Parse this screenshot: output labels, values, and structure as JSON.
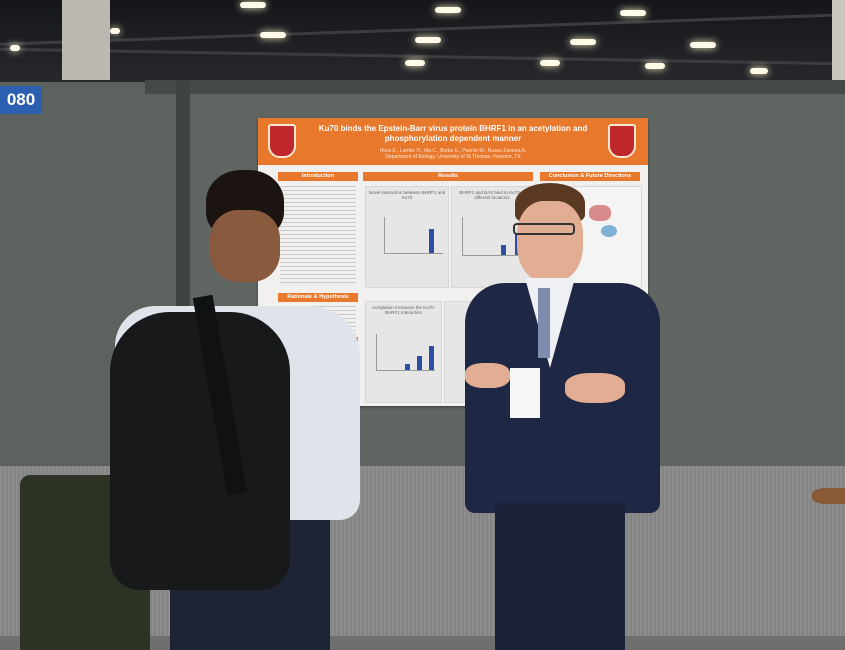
{
  "board_number": "080",
  "poster": {
    "title": "Ku70 binds the Epstein-Barr virus protein BHRF1 in an acetylation and phosphorylation dependent manner",
    "authors": "Hess E., Lambs H., Ma C., Burke E., Puente M., Russo Zamora A.",
    "affiliation": "Department of Biology, University of St Thomas, Houston, TX",
    "sections": {
      "introduction": "Introduction",
      "results": "Results",
      "conclusion": "Conclusion & Future Directions",
      "rationale": "Rationale & Hypothesis"
    },
    "figures": [
      "Novel interaction between BHRF1 and Ku70",
      "BHRF1 and BAX bind to Ku70 at different locations",
      "Acetylation Increases the Ku70-BHRF1 Interaction"
    ],
    "accent_color": "#e8782c",
    "bar_color": "#2f4ea3"
  }
}
